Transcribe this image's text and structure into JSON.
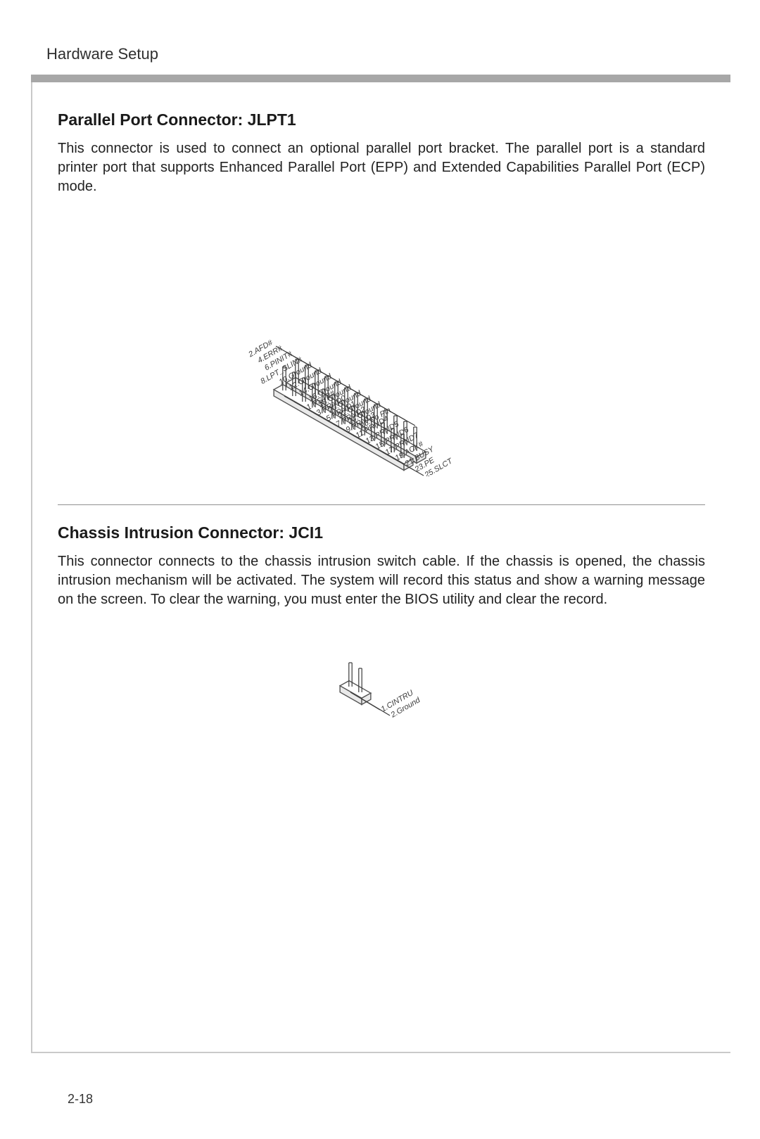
{
  "header": {
    "title": "Hardware Setup"
  },
  "page_number": "2-18",
  "colors": {
    "text": "#1a1a1a",
    "grey_bar": "#a7a7a7",
    "frame_border": "#c9c9c9",
    "divider": "#8f8f8f",
    "diagram_stroke": "#555555",
    "diagram_label": "#3a3a3a"
  },
  "sections": [
    {
      "title": "Parallel Port Connector: JLPT1",
      "body": "This connector is used to connect an optional parallel port bracket. The parallel port is a standard printer port that supports Enhanced Parallel Port (EPP) and Extended Capabilities Parallel Port (ECP) mode.",
      "diagram": {
        "type": "isometric-pin-header",
        "rows": 2,
        "cols": 13,
        "top_labels": [
          "26.No Pin",
          "24.Ground",
          "22.Ground",
          "20.Ground",
          "18.Ground",
          "16.Ground",
          "14.Ground",
          "12.Ground",
          "10.Ground",
          "8.LPT_SLIN#",
          "6.PINIT#",
          "4.ERR#",
          "2.AFD#"
        ],
        "bottom_labels": [
          "25.SLCT",
          "23.PE",
          "21.BUSY",
          "19.ACK#",
          "17.PRND7",
          "15.PRND6",
          "13.PRND5",
          "11.PRND4",
          "9.PRND3",
          "7.PRND2",
          "5.PRND1",
          "3.PRND0",
          "1.RSTB#"
        ]
      }
    },
    {
      "title": "Chassis Intrusion Connector: JCI1",
      "body": "This connector connects to the chassis intrusion switch cable. If the chassis is opened, the chassis intrusion mechanism will be activated. The system will record this status and show a warning message on the screen. To clear the warning, you must enter the BIOS utility and clear the record.",
      "diagram": {
        "type": "isometric-pin-header",
        "rows": 1,
        "cols": 2,
        "labels": [
          "2.Ground",
          "1.CINTRU"
        ]
      }
    }
  ]
}
